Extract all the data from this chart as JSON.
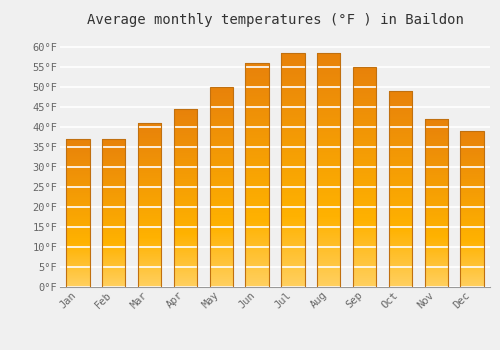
{
  "title": "Average monthly temperatures (°F ) in Baildon",
  "months": [
    "Jan",
    "Feb",
    "Mar",
    "Apr",
    "May",
    "Jun",
    "Jul",
    "Aug",
    "Sep",
    "Oct",
    "Nov",
    "Dec"
  ],
  "values": [
    37,
    37,
    41,
    44.5,
    50,
    56,
    58.5,
    58.5,
    55,
    49,
    42,
    39
  ],
  "bar_color_top": "#F5A623",
  "bar_color_mid": "#FFB700",
  "bar_color_bot": "#FFD060",
  "bar_edge_color": "#C88000",
  "ylim": [
    0,
    63
  ],
  "yticks": [
    0,
    5,
    10,
    15,
    20,
    25,
    30,
    35,
    40,
    45,
    50,
    55,
    60
  ],
  "ytick_labels": [
    "0°F",
    "5°F",
    "10°F",
    "15°F",
    "20°F",
    "25°F",
    "30°F",
    "35°F",
    "40°F",
    "45°F",
    "50°F",
    "55°F",
    "60°F"
  ],
  "background_color": "#f0f0f0",
  "grid_color": "#ffffff",
  "title_fontsize": 10,
  "tick_fontsize": 7.5,
  "font_family": "monospace",
  "bar_width": 0.65
}
